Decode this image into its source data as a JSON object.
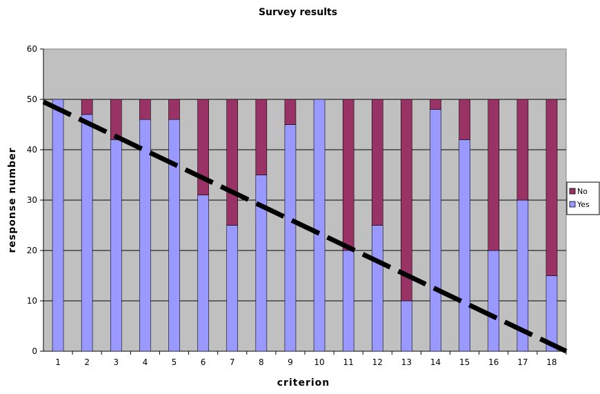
{
  "chart_data": {
    "type": "bar",
    "stacked": true,
    "title": "Survey results",
    "xlabel": "criterion",
    "ylabel": "response number",
    "ylim": [
      0,
      60
    ],
    "yticks": [
      0,
      10,
      20,
      30,
      40,
      50,
      60
    ],
    "categories": [
      "1",
      "2",
      "3",
      "4",
      "5",
      "6",
      "7",
      "8",
      "9",
      "10",
      "11",
      "12",
      "13",
      "14",
      "15",
      "16",
      "17",
      "18"
    ],
    "series": [
      {
        "name": "Yes",
        "color": "#9999ff",
        "values": [
          50,
          47,
          42,
          46,
          46,
          31,
          25,
          35,
          45,
          50,
          20,
          25,
          10,
          48,
          42,
          20,
          30,
          15
        ]
      },
      {
        "name": "No",
        "color": "#993366",
        "values": [
          0,
          3,
          8,
          4,
          4,
          19,
          25,
          15,
          5,
          0,
          30,
          25,
          40,
          2,
          8,
          30,
          20,
          35
        ]
      }
    ],
    "trendline": {
      "style": "dashed",
      "color": "#000000",
      "start": [
        0.5,
        49.5
      ],
      "end": [
        18.5,
        0
      ]
    },
    "legend": {
      "position": "right",
      "entries": [
        "No",
        "Yes"
      ]
    },
    "grid": true,
    "plot_background": "#c0c0c0"
  }
}
